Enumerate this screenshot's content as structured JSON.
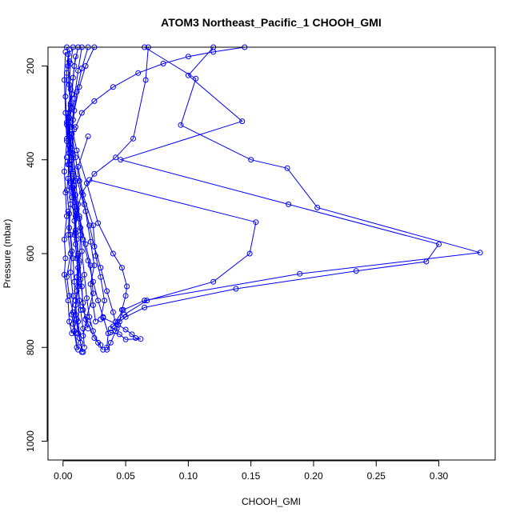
{
  "chart_data": {
    "type": "line",
    "title": "ATOM3 Northeast_Pacific_1 CHOOH_GMI",
    "xlabel": "CHOOH_GMI",
    "ylabel": "Pressure (mbar)",
    "xlim": [
      -0.012,
      0.345
    ],
    "ylim": [
      1040,
      160
    ],
    "y_reversed": true,
    "x_ticks": [
      0.0,
      0.05,
      0.1,
      0.15,
      0.2,
      0.25,
      0.3
    ],
    "x_tick_labels": [
      "0.00",
      "0.05",
      "0.10",
      "0.15",
      "0.20",
      "0.25",
      "0.30"
    ],
    "y_ticks": [
      200,
      400,
      600,
      800,
      1000
    ],
    "y_tick_labels": [
      "200",
      "400",
      "600",
      "800",
      "1000"
    ],
    "color": "#0000ff",
    "grid": false,
    "series": [
      {
        "points": [
          [
            0.003,
            160
          ],
          [
            0.005,
            190
          ],
          [
            0.004,
            230
          ],
          [
            0.006,
            280
          ],
          [
            0.003,
            320
          ],
          [
            0.005,
            370
          ],
          [
            0.006,
            420
          ],
          [
            0.008,
            470
          ],
          [
            0.01,
            520
          ],
          [
            0.011,
            570
          ],
          [
            0.013,
            620
          ],
          [
            0.012,
            670
          ],
          [
            0.014,
            720
          ],
          [
            0.016,
            760
          ],
          [
            0.017,
            800
          ]
        ]
      },
      {
        "points": [
          [
            0.005,
            165
          ],
          [
            0.004,
            200
          ],
          [
            0.006,
            250
          ],
          [
            0.004,
            300
          ],
          [
            0.005,
            350
          ],
          [
            0.007,
            400
          ],
          [
            0.006,
            450
          ],
          [
            0.009,
            500
          ],
          [
            0.01,
            550
          ],
          [
            0.012,
            600
          ],
          [
            0.011,
            650
          ],
          [
            0.013,
            700
          ],
          [
            0.012,
            745
          ],
          [
            0.014,
            790
          ],
          [
            0.015,
            810
          ]
        ]
      },
      {
        "points": [
          [
            0.008,
            160
          ],
          [
            0.006,
            195
          ],
          [
            0.005,
            240
          ],
          [
            0.007,
            290
          ],
          [
            0.004,
            330
          ],
          [
            0.006,
            380
          ],
          [
            0.008,
            430
          ],
          [
            0.007,
            480
          ],
          [
            0.009,
            530
          ],
          [
            0.01,
            580
          ],
          [
            0.012,
            630
          ],
          [
            0.011,
            680
          ],
          [
            0.01,
            730
          ],
          [
            0.012,
            770
          ]
        ]
      },
      {
        "points": [
          [
            0.012,
            160
          ],
          [
            0.009,
            200
          ],
          [
            0.007,
            260
          ],
          [
            0.005,
            310
          ],
          [
            0.006,
            360
          ],
          [
            0.004,
            410
          ],
          [
            0.007,
            460
          ],
          [
            0.01,
            510
          ],
          [
            0.009,
            560
          ],
          [
            0.011,
            610
          ],
          [
            0.013,
            660
          ],
          [
            0.01,
            710
          ],
          [
            0.008,
            750
          ],
          [
            0.011,
            800
          ]
        ]
      },
      {
        "points": [
          [
            0.002,
            170
          ],
          [
            0.001,
            230
          ],
          [
            0.002,
            300
          ],
          [
            0.003,
            360
          ],
          [
            0.001,
            425
          ],
          [
            0.002,
            470
          ],
          [
            0.003,
            520
          ],
          [
            0.001,
            570
          ],
          [
            0.002,
            610
          ],
          [
            0.001,
            645
          ],
          [
            0.004,
            700
          ],
          [
            0.005,
            745
          ],
          [
            0.007,
            770
          ]
        ]
      },
      {
        "points": [
          [
            0.004,
            175
          ],
          [
            0.003,
            215
          ],
          [
            0.002,
            265
          ],
          [
            0.003,
            325
          ],
          [
            0.005,
            385
          ],
          [
            0.004,
            440
          ],
          [
            0.006,
            495
          ],
          [
            0.005,
            545
          ],
          [
            0.007,
            595
          ],
          [
            0.006,
            640
          ],
          [
            0.008,
            690
          ],
          [
            0.007,
            730
          ],
          [
            0.009,
            765
          ],
          [
            0.012,
            805
          ]
        ]
      },
      {
        "points": [
          [
            0.01,
            180
          ],
          [
            0.008,
            225
          ],
          [
            0.006,
            285
          ],
          [
            0.005,
            345
          ],
          [
            0.007,
            395
          ],
          [
            0.009,
            455
          ],
          [
            0.011,
            505
          ],
          [
            0.01,
            555
          ],
          [
            0.012,
            605
          ],
          [
            0.014,
            655
          ],
          [
            0.016,
            705
          ],
          [
            0.018,
            740
          ],
          [
            0.02,
            760
          ]
        ]
      },
      {
        "points": [
          [
            0.015,
            160
          ],
          [
            0.012,
            210
          ],
          [
            0.009,
            270
          ],
          [
            0.007,
            330
          ],
          [
            0.008,
            390
          ],
          [
            0.01,
            445
          ],
          [
            0.012,
            495
          ],
          [
            0.014,
            545
          ],
          [
            0.015,
            595
          ],
          [
            0.017,
            645
          ],
          [
            0.019,
            695
          ],
          [
            0.021,
            735
          ],
          [
            0.024,
            765
          ],
          [
            0.028,
            790
          ],
          [
            0.032,
            805
          ]
        ]
      },
      {
        "points": [
          [
            0.02,
            160
          ],
          [
            0.015,
            205
          ],
          [
            0.011,
            255
          ],
          [
            0.008,
            315
          ],
          [
            0.006,
            375
          ],
          [
            0.008,
            425
          ],
          [
            0.01,
            475
          ],
          [
            0.013,
            525
          ],
          [
            0.016,
            570
          ],
          [
            0.02,
            615
          ],
          [
            0.024,
            660
          ],
          [
            0.028,
            700
          ],
          [
            0.032,
            735
          ],
          [
            0.036,
            770
          ],
          [
            0.035,
            800
          ]
        ]
      },
      {
        "points": [
          [
            0.025,
            160
          ],
          [
            0.018,
            200
          ],
          [
            0.013,
            245
          ],
          [
            0.009,
            295
          ],
          [
            0.007,
            345
          ],
          [
            0.01,
            395
          ],
          [
            0.013,
            445
          ],
          [
            0.017,
            495
          ],
          [
            0.021,
            540
          ],
          [
            0.025,
            585
          ],
          [
            0.03,
            630
          ],
          [
            0.035,
            680
          ],
          [
            0.04,
            725
          ],
          [
            0.043,
            760
          ],
          [
            0.038,
            790
          ],
          [
            0.035,
            805
          ]
        ]
      },
      {
        "points": [
          [
            0.02,
            350
          ],
          [
            0.012,
            415
          ],
          [
            0.016,
            475
          ],
          [
            0.024,
            540
          ],
          [
            0.026,
            605
          ],
          [
            0.03,
            650
          ],
          [
            0.033,
            700
          ],
          [
            0.03,
            740
          ]
        ]
      },
      {
        "points": [
          [
            0.009,
            335
          ],
          [
            0.007,
            385
          ],
          [
            0.011,
            440
          ],
          [
            0.018,
            510
          ],
          [
            0.022,
            575
          ],
          [
            0.025,
            625
          ],
          [
            0.022,
            665
          ],
          [
            0.024,
            710
          ],
          [
            0.026,
            745
          ]
        ]
      },
      {
        "points": [
          [
            0.006,
            320
          ],
          [
            0.011,
            380
          ],
          [
            0.019,
            450
          ],
          [
            0.028,
            535
          ],
          [
            0.04,
            600
          ],
          [
            0.047,
            630
          ],
          [
            0.051,
            670
          ],
          [
            0.05,
            690
          ],
          [
            0.047,
            720
          ],
          [
            0.045,
            745
          ],
          [
            0.042,
            765
          ]
        ]
      },
      {
        "points": [
          [
            0.003,
            395
          ],
          [
            0.008,
            460
          ],
          [
            0.013,
            520
          ],
          [
            0.018,
            580
          ],
          [
            0.022,
            625
          ],
          [
            0.024,
            685
          ],
          [
            0.019,
            735
          ],
          [
            0.016,
            775
          ]
        ]
      },
      {
        "points": [
          [
            0.006,
            445
          ],
          [
            0.011,
            505
          ],
          [
            0.014,
            560
          ],
          [
            0.013,
            615
          ],
          [
            0.015,
            670
          ],
          [
            0.016,
            720
          ],
          [
            0.02,
            750
          ],
          [
            0.025,
            780
          ],
          [
            0.03,
            795
          ]
        ]
      },
      {
        "points": [
          [
            0.145,
            160
          ],
          [
            0.12,
            170
          ],
          [
            0.1,
            180
          ],
          [
            0.08,
            195
          ],
          [
            0.06,
            215
          ],
          [
            0.04,
            245
          ],
          [
            0.025,
            275
          ],
          [
            0.015,
            300
          ],
          [
            0.01,
            330
          ]
        ]
      },
      {
        "points": [
          [
            0.068,
            160
          ],
          [
            0.066,
            230
          ],
          [
            0.056,
            355
          ],
          [
            0.042,
            395
          ],
          [
            0.025,
            430
          ],
          [
            0.015,
            470
          ],
          [
            0.01,
            520
          ]
        ]
      },
      {
        "points": [
          [
            0.12,
            160
          ],
          [
            0.1,
            220
          ],
          [
            0.143,
            318
          ],
          [
            0.046,
            400
          ],
          [
            0.18,
            495
          ],
          [
            0.3,
            580
          ],
          [
            0.29,
            617
          ],
          [
            0.234,
            637
          ],
          [
            0.138,
            675
          ],
          [
            0.065,
            715
          ],
          [
            0.05,
            735
          ],
          [
            0.04,
            755
          ]
        ]
      },
      {
        "points": [
          [
            0.065,
            160
          ],
          [
            0.106,
            227
          ],
          [
            0.094,
            326
          ],
          [
            0.15,
            400
          ],
          [
            0.179,
            418
          ],
          [
            0.203,
            502
          ],
          [
            0.333,
            598
          ],
          [
            0.189,
            643
          ],
          [
            0.065,
            700
          ],
          [
            0.048,
            720
          ],
          [
            0.042,
            745
          ]
        ]
      },
      {
        "points": [
          [
            0.021,
            443
          ],
          [
            0.154,
            533
          ],
          [
            0.149,
            600
          ],
          [
            0.12,
            660
          ],
          [
            0.067,
            700
          ],
          [
            0.049,
            730
          ],
          [
            0.038,
            760
          ]
        ]
      },
      {
        "points": [
          [
            0.032,
            737
          ],
          [
            0.044,
            752
          ],
          [
            0.05,
            762
          ],
          [
            0.055,
            772
          ],
          [
            0.058,
            780
          ],
          [
            0.062,
            782
          ],
          [
            0.05,
            783
          ],
          [
            0.045,
            772
          ],
          [
            0.038,
            768
          ]
        ]
      },
      {
        "points": [
          [
            0.004,
            510
          ],
          [
            0.006,
            560
          ],
          [
            0.008,
            610
          ],
          [
            0.009,
            660
          ],
          [
            0.01,
            700
          ],
          [
            0.011,
            740
          ],
          [
            0.013,
            780
          ],
          [
            0.016,
            810
          ]
        ]
      },
      {
        "points": [
          [
            0.007,
            260
          ],
          [
            0.004,
            310
          ],
          [
            0.003,
            355
          ],
          [
            0.005,
            410
          ],
          [
            0.003,
            465
          ],
          [
            0.005,
            515
          ],
          [
            0.004,
            560
          ],
          [
            0.006,
            600
          ],
          [
            0.003,
            650
          ],
          [
            0.005,
            690
          ],
          [
            0.008,
            725
          ],
          [
            0.01,
            770
          ]
        ]
      }
    ]
  }
}
